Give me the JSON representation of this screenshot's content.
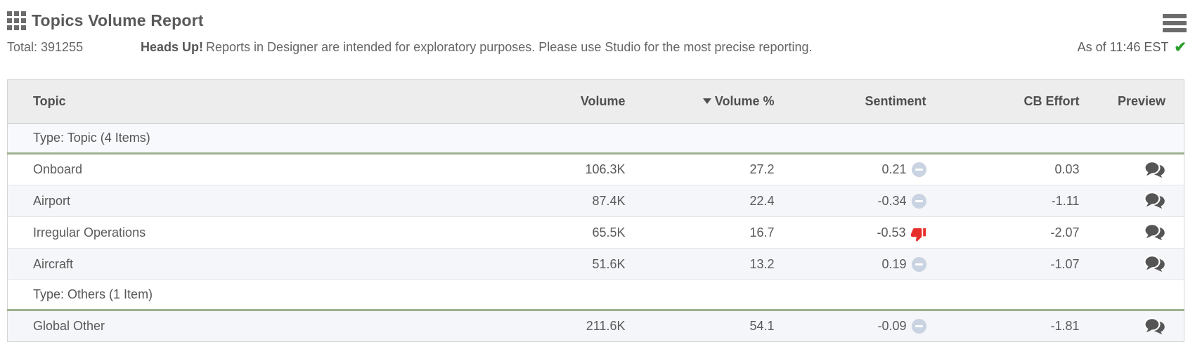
{
  "header": {
    "title": "Topics Volume Report",
    "total_label": "Total: 391255",
    "notice_bold": "Heads Up!",
    "notice_text": "Reports in Designer are intended for exploratory purposes. Please use Studio for the most precise reporting.",
    "as_of": "As of 11:46 EST",
    "check_glyph": "✔"
  },
  "icons": {
    "grid-icon": "3x3 grid of squares",
    "menu-icon": "hamburger menu (3 bars)",
    "check-icon": "green checkmark",
    "sort-descending-icon": "down triangle on sorted column",
    "neutral-sentiment-icon": "light blue-gray circle with white minus",
    "thumbs-down-icon": "red thumbs down",
    "comments-icon": "dark gray overlapping speech bubbles"
  },
  "colors": {
    "title_text": "#595959",
    "body_text": "#5a5a5a",
    "header_bg": "#ededed",
    "group_separator_green": "#9db28e",
    "group_row_bg": "#f8f9fc",
    "alt_row_bg": "#f4f6f9",
    "neutral_sentiment": "#c9d3e1",
    "thumbs_down_red": "#e8302a",
    "check_green": "#2b9e2b",
    "icon_gray": "#555555"
  },
  "table": {
    "columns": [
      "Topic",
      "Volume",
      "Volume %",
      "Sentiment",
      "CB Effort",
      "Preview"
    ],
    "sorted_column": "Volume %",
    "sort_direction": "descending",
    "groups": [
      {
        "label": "Type: Topic (4 Items)",
        "rows": [
          {
            "topic": "Onboard",
            "volume": "106.3K",
            "volume_pct": "27.2",
            "sentiment": "0.21",
            "sentiment_icon": "neutral",
            "cb_effort": "0.03"
          },
          {
            "topic": "Airport",
            "volume": "87.4K",
            "volume_pct": "22.4",
            "sentiment": "-0.34",
            "sentiment_icon": "neutral",
            "cb_effort": "-1.11"
          },
          {
            "topic": "Irregular Operations",
            "volume": "65.5K",
            "volume_pct": "16.7",
            "sentiment": "-0.53",
            "sentiment_icon": "thumbs-down",
            "cb_effort": "-2.07"
          },
          {
            "topic": "Aircraft",
            "volume": "51.6K",
            "volume_pct": "13.2",
            "sentiment": "0.19",
            "sentiment_icon": "neutral",
            "cb_effort": "-1.07"
          }
        ]
      },
      {
        "label": "Type: Others (1 Item)",
        "rows": [
          {
            "topic": "Global Other",
            "volume": "211.6K",
            "volume_pct": "54.1",
            "sentiment": "-0.09",
            "sentiment_icon": "neutral",
            "cb_effort": "-1.81"
          }
        ]
      }
    ]
  }
}
